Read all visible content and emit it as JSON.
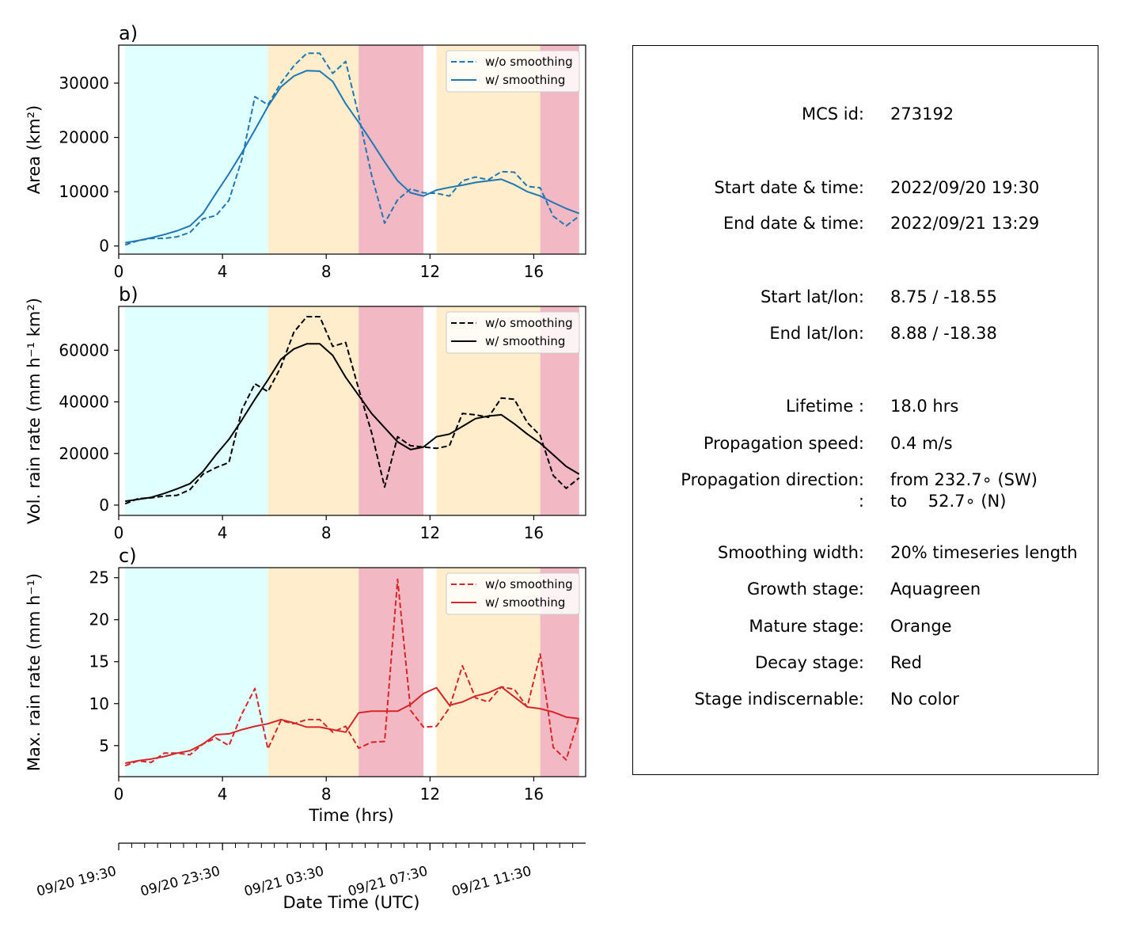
{
  "chart_data": [
    {
      "type": "line",
      "panel_label": "a)",
      "ylabel": "Area  (km²)",
      "xlim": [
        0,
        18
      ],
      "ylim": [
        -1500,
        37000
      ],
      "yticks": [
        0,
        10000,
        20000,
        30000
      ],
      "xticks": [
        0,
        4,
        8,
        12,
        16
      ],
      "color": "#1f77b4",
      "legend_position": "top-right",
      "x": [
        0.25,
        0.75,
        1.25,
        1.75,
        2.25,
        2.75,
        3.25,
        3.75,
        4.25,
        4.75,
        5.25,
        5.75,
        6.25,
        6.75,
        7.25,
        7.75,
        8.25,
        8.75,
        9.25,
        9.75,
        10.25,
        10.75,
        11.25,
        11.75,
        12.25,
        12.75,
        13.25,
        13.75,
        14.25,
        14.75,
        15.25,
        15.75,
        16.25,
        16.75,
        17.25,
        17.75
      ],
      "series": [
        {
          "name": "w/o smoothing",
          "style": "dashed",
          "values": [
            200,
            1000,
            1400,
            1400,
            1700,
            2500,
            5000,
            5600,
            8400,
            16000,
            27500,
            26000,
            30000,
            33200,
            35500,
            35500,
            31800,
            34000,
            24000,
            13000,
            4200,
            8500,
            10500,
            9800,
            9700,
            9200,
            12000,
            12700,
            12200,
            13700,
            13600,
            11000,
            10700,
            5500,
            3700,
            5500
          ]
        },
        {
          "name": "w/ smoothing",
          "style": "solid",
          "values": [
            600,
            1000,
            1500,
            2100,
            2800,
            3700,
            6000,
            9700,
            13300,
            17200,
            21400,
            25700,
            29300,
            31300,
            32300,
            32200,
            30300,
            26200,
            22800,
            19200,
            15500,
            12000,
            9800,
            9200,
            10300,
            10800,
            11200,
            11700,
            12000,
            12300,
            11300,
            10000,
            9200,
            8000,
            6900,
            6000
          ]
        }
      ]
    },
    {
      "type": "line",
      "panel_label": "b)",
      "ylabel": "Vol. rain rate (mm h⁻¹ km²)",
      "xlim": [
        0,
        18
      ],
      "ylim": [
        -4000,
        77000
      ],
      "yticks": [
        0,
        20000,
        40000,
        60000
      ],
      "xticks": [
        0,
        4,
        8,
        12,
        16
      ],
      "color": "#000000",
      "legend_position": "top-right",
      "x": [
        0.25,
        0.75,
        1.25,
        1.75,
        2.25,
        2.75,
        3.25,
        3.75,
        4.25,
        4.75,
        5.25,
        5.75,
        6.25,
        6.75,
        7.25,
        7.75,
        8.25,
        8.75,
        9.25,
        9.75,
        10.25,
        10.75,
        11.25,
        11.75,
        12.25,
        12.75,
        13.25,
        13.75,
        14.25,
        14.75,
        15.25,
        15.75,
        16.25,
        16.75,
        17.25,
        17.75
      ],
      "series": [
        {
          "name": "w/o smoothing",
          "style": "dashed",
          "values": [
            500,
            2500,
            2800,
            3500,
            3800,
            6000,
            12000,
            14500,
            16500,
            37000,
            47000,
            44000,
            53500,
            67000,
            73000,
            73000,
            61500,
            63000,
            45000,
            28000,
            7000,
            26500,
            23000,
            22500,
            22000,
            23000,
            35500,
            35000,
            34000,
            41500,
            41000,
            32000,
            27000,
            11500,
            6500,
            10500
          ]
        },
        {
          "name": "w/ smoothing",
          "style": "solid",
          "values": [
            1500,
            2200,
            3000,
            4500,
            6300,
            8300,
            13000,
            19500,
            25500,
            33000,
            41000,
            48500,
            56500,
            60500,
            62500,
            62500,
            58000,
            49500,
            42500,
            35500,
            30000,
            24500,
            21500,
            22500,
            26500,
            27500,
            30500,
            33500,
            34500,
            35000,
            31500,
            27500,
            24000,
            19500,
            15000,
            12000
          ]
        }
      ]
    },
    {
      "type": "line",
      "panel_label": "c)",
      "ylabel": "Max. rain rate  (mm h⁻¹)",
      "xlabel": "Time (hrs)",
      "xlim": [
        0,
        18
      ],
      "ylim": [
        1.3,
        26.2
      ],
      "yticks": [
        5,
        10,
        15,
        20,
        25
      ],
      "xticks": [
        0,
        4,
        8,
        12,
        16
      ],
      "color": "#d62728",
      "legend_position": "top-right",
      "x": [
        0.25,
        0.75,
        1.25,
        1.75,
        2.25,
        2.75,
        3.25,
        3.75,
        4.25,
        4.75,
        5.25,
        5.75,
        6.25,
        6.75,
        7.25,
        7.75,
        8.25,
        8.75,
        9.25,
        9.75,
        10.25,
        10.75,
        11.25,
        11.75,
        12.25,
        12.75,
        13.25,
        13.75,
        14.25,
        14.75,
        15.25,
        15.75,
        16.25,
        16.75,
        17.25,
        17.75
      ],
      "series": [
        {
          "name": "w/o smoothing",
          "style": "dashed",
          "values": [
            2.6,
            3.2,
            3.0,
            4.1,
            4.1,
            3.9,
            5.2,
            5.9,
            5.0,
            8.8,
            11.8,
            4.6,
            8.0,
            7.6,
            8.1,
            8.1,
            6.6,
            7.3,
            4.7,
            5.4,
            5.5,
            24.8,
            9.2,
            7.2,
            7.3,
            9.5,
            14.5,
            10.7,
            10.2,
            12.0,
            11.7,
            9.6,
            15.9,
            4.8,
            3.3,
            8.4
          ]
        },
        {
          "name": "w/ smoothing",
          "style": "solid",
          "values": [
            2.9,
            3.2,
            3.4,
            3.7,
            4.1,
            4.4,
            5.2,
            6.3,
            6.4,
            6.9,
            7.3,
            7.6,
            8.1,
            7.7,
            7.2,
            7.2,
            6.9,
            6.6,
            8.9,
            9.1,
            9.1,
            9.1,
            9.9,
            11.2,
            11.9,
            9.8,
            10.2,
            10.9,
            11.3,
            12.0,
            10.8,
            9.6,
            9.4,
            9.0,
            8.4,
            8.2
          ]
        }
      ]
    }
  ],
  "stage_bands": [
    {
      "stage": "growth",
      "start": 0.25,
      "end": 5.75,
      "color": "#e0ffff"
    },
    {
      "stage": "mature",
      "start": 5.75,
      "end": 9.25,
      "color": "#ffedcc"
    },
    {
      "stage": "decay",
      "start": 9.25,
      "end": 11.75,
      "color": "#f2b8c4"
    },
    {
      "stage": "mature",
      "start": 12.25,
      "end": 16.25,
      "color": "#ffedcc"
    },
    {
      "stage": "decay",
      "start": 16.25,
      "end": 17.75,
      "color": "#f2b8c4"
    }
  ],
  "datetime_axis": {
    "xlabel": "Date Time (UTC)",
    "ticks": [
      {
        "t": 0,
        "label": "09/20 19:30"
      },
      {
        "t": 4,
        "label": "09/20 23:30"
      },
      {
        "t": 8,
        "label": "09/21 03:30"
      },
      {
        "t": 12,
        "label": "09/21 07:30"
      },
      {
        "t": 16,
        "label": "09/21 11:30"
      }
    ],
    "minor_step": 0.5
  },
  "info": {
    "mcs_id_label": "MCS id:",
    "mcs_id": "273192",
    "start_dt_label": "Start date & time:",
    "start_dt": "2022/09/20 19:30",
    "end_dt_label": "End date & time:",
    "end_dt": "2022/09/21 13:29",
    "start_ll_label": "Start lat/lon:",
    "start_ll": "8.75 / -18.55",
    "end_ll_label": "End lat/lon:",
    "end_ll": "8.88 / -18.38",
    "lifetime_label": "Lifetime :",
    "lifetime": "18.0 hrs",
    "speed_label": "Propagation speed:",
    "speed": "0.4 m/s",
    "direction_label": "Propagation direction:",
    "direction_from": "from 232.7∘ (SW)",
    "direction_label2": ":",
    "direction_to": "to    52.7∘ (N)",
    "smoothing_label": "Smoothing width:",
    "smoothing": "20% timeseries length",
    "growth_label": "Growth stage:",
    "growth": "Aquagreen",
    "mature_label": "Mature stage:",
    "mature": "Orange",
    "decay_label": "Decay stage:",
    "decay": "Red",
    "indisc_label": "Stage indiscernable:",
    "indisc": "No color"
  }
}
